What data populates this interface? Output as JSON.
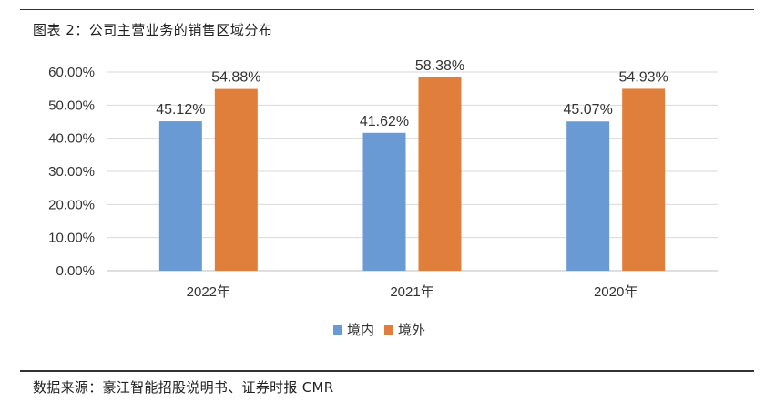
{
  "figure": {
    "caption": "图表 2：公司主营业务的销售区域分布",
    "source": "数据来源：豪江智能招股说明书、证券时报 CMR"
  },
  "chart_data": {
    "type": "bar",
    "categories": [
      "2022年",
      "2021年",
      "2020年"
    ],
    "series": [
      {
        "name": "境内",
        "values": [
          45.12,
          41.62,
          45.07
        ],
        "labels": [
          "45.12%",
          "41.62%",
          "45.07%"
        ],
        "color": "#6a9ad4"
      },
      {
        "name": "境外",
        "values": [
          54.88,
          58.38,
          54.93
        ],
        "labels": [
          "54.88%",
          "58.38%",
          "54.93%"
        ],
        "color": "#e07f3c"
      }
    ],
    "yticks": [
      "0.00%",
      "10.00%",
      "20.00%",
      "30.00%",
      "40.00%",
      "50.00%",
      "60.00%"
    ],
    "ylim": [
      0,
      60
    ],
    "grid": true,
    "legend": "bottom-center",
    "title": "",
    "xlabel": "",
    "ylabel": ""
  }
}
